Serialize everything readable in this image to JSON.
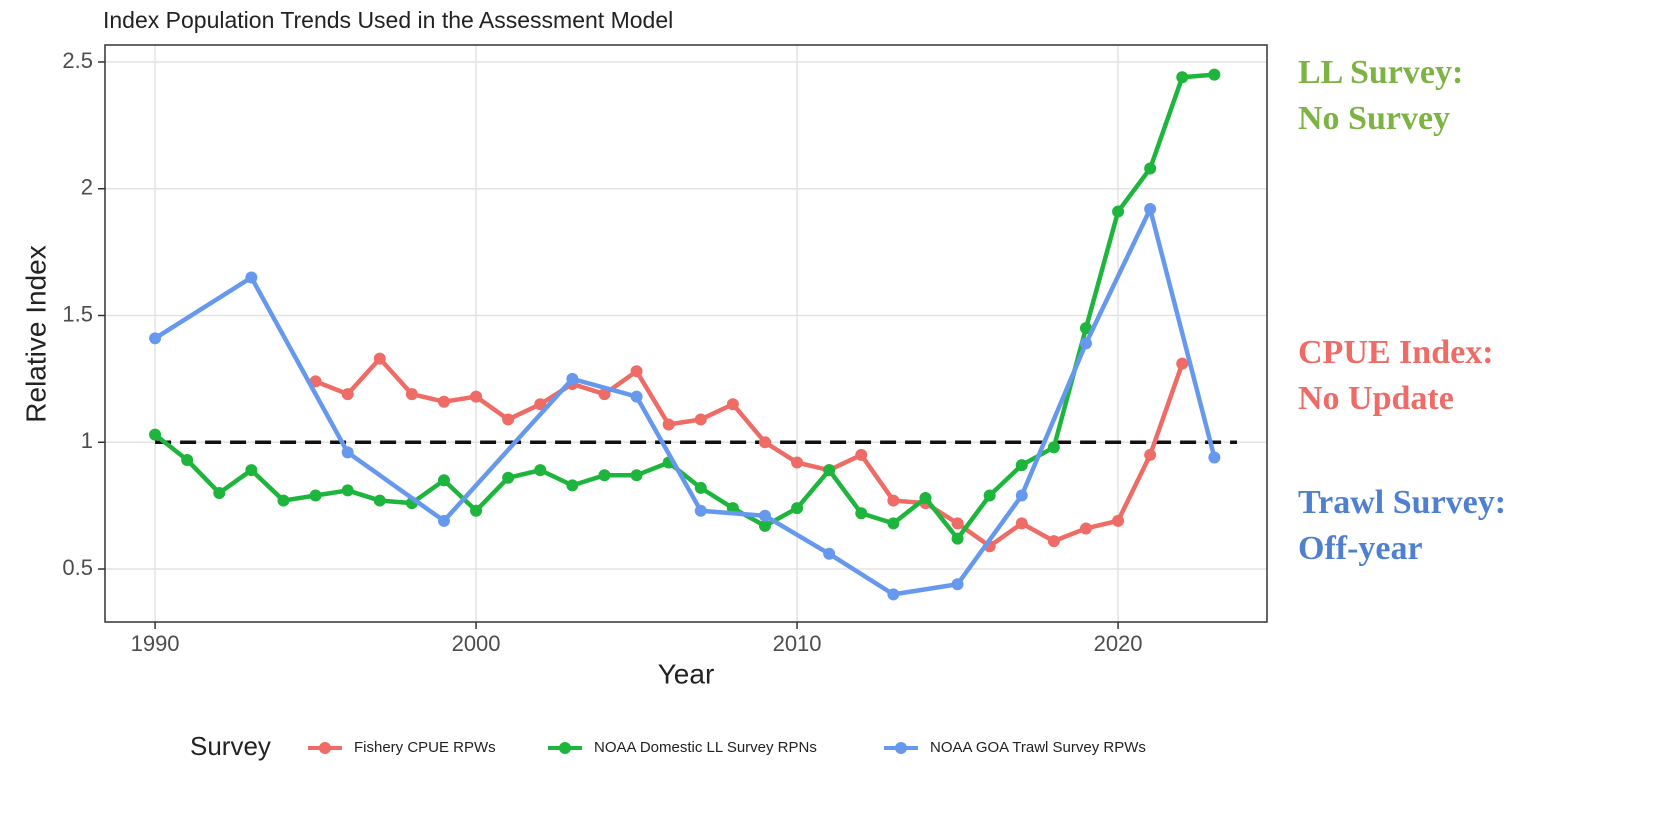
{
  "chart_data": {
    "type": "line",
    "title": "Index Population Trends Used in the Assessment Model",
    "x_label": "Year",
    "y_label": "Relative Index",
    "legend_title": "Survey",
    "xlim": [
      1988.44,
      2024.64
    ],
    "ylim": [
      0.291,
      2.567
    ],
    "xticks": [
      1990,
      2000,
      2010,
      2020
    ],
    "yticks": [
      0.5,
      1.0,
      1.5,
      2.0,
      2.5
    ],
    "grid": true,
    "legend": "bottom",
    "reference_line": 1,
    "series": [
      {
        "name": "Fishery CPUE RPWs",
        "color": "#ee6b66",
        "x": [
          1995,
          1996,
          1997,
          1998,
          1999,
          2000,
          2001,
          2002,
          2003,
          2004,
          2005,
          2006,
          2007,
          2008,
          2009,
          2010,
          2011,
          2012,
          2013,
          2014,
          2015,
          2016,
          2017,
          2018,
          2019,
          2020,
          2021,
          2022
        ],
        "values": [
          1.24,
          1.19,
          1.33,
          1.19,
          1.16,
          1.18,
          1.09,
          1.15,
          1.23,
          1.19,
          1.28,
          1.07,
          1.09,
          1.15,
          1.0,
          0.92,
          0.89,
          0.95,
          0.77,
          0.76,
          0.68,
          0.59,
          0.68,
          0.61,
          0.66,
          0.69,
          0.95,
          1.31
        ]
      },
      {
        "name": "NOAA Domestic LL Survey RPNs",
        "color": "#1db53c",
        "x": [
          1990,
          1991,
          1992,
          1993,
          1994,
          1995,
          1996,
          1997,
          1998,
          1999,
          2000,
          2001,
          2002,
          2003,
          2004,
          2005,
          2006,
          2007,
          2008,
          2009,
          2010,
          2011,
          2012,
          2013,
          2014,
          2015,
          2016,
          2017,
          2018,
          2019,
          2020,
          2021,
          2022,
          2023
        ],
        "values": [
          1.03,
          0.93,
          0.8,
          0.89,
          0.77,
          0.79,
          0.81,
          0.77,
          0.76,
          0.85,
          0.73,
          0.86,
          0.89,
          0.83,
          0.87,
          0.87,
          0.92,
          0.82,
          0.74,
          0.67,
          0.74,
          0.89,
          0.72,
          0.68,
          0.78,
          0.62,
          0.79,
          0.91,
          0.98,
          1.45,
          1.91,
          2.08,
          2.44,
          2.45
        ]
      },
      {
        "name": "NOAA GOA Trawl Survey RPWs",
        "color": "#6699ee",
        "x": [
          1990,
          1993,
          1996,
          1999,
          2003,
          2005,
          2007,
          2009,
          2011,
          2013,
          2015,
          2017,
          2019,
          2021,
          2023
        ],
        "values": [
          1.41,
          1.65,
          0.96,
          0.69,
          1.25,
          1.18,
          0.73,
          0.71,
          0.56,
          0.4,
          0.44,
          0.79,
          1.39,
          1.92,
          0.94
        ]
      }
    ],
    "annotations": [
      {
        "lines": [
          "LL Survey:",
          "No Survey"
        ],
        "color": "#7cb342"
      },
      {
        "lines": [
          "CPUE Index:",
          "No Update"
        ],
        "color": "#ee6b66"
      },
      {
        "lines": [
          "Trawl Survey:",
          "Off-year"
        ],
        "color": "#4f7fd0"
      }
    ]
  }
}
